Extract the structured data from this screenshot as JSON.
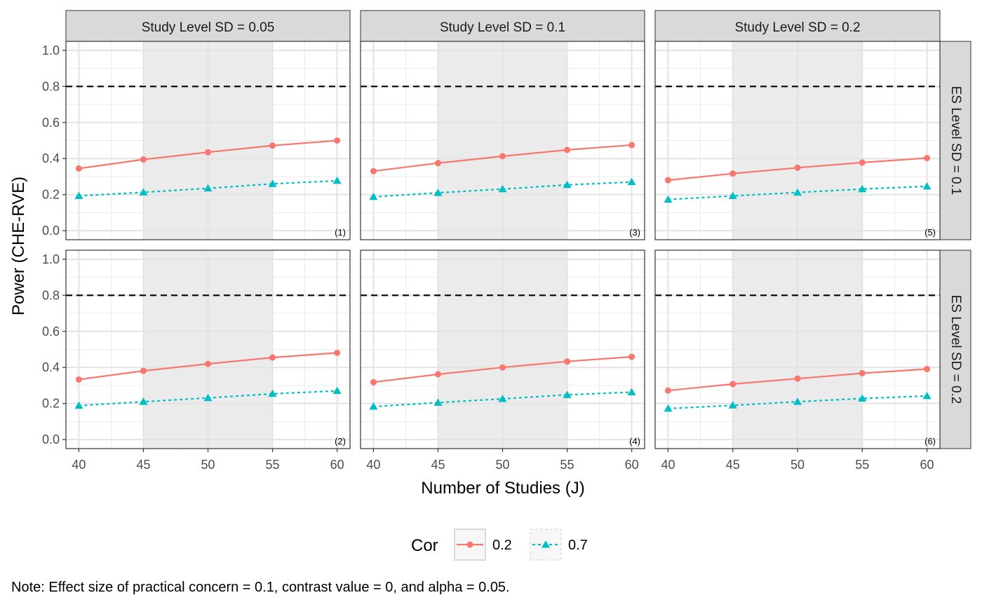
{
  "chart_data": {
    "type": "line",
    "ylabel": "Power (CHE-RVE)",
    "xlabel": "Number of Studies (J)",
    "x": [
      40,
      45,
      50,
      55,
      60
    ],
    "xticks": [
      "40",
      "45",
      "50",
      "55",
      "60"
    ],
    "xlim": [
      39,
      61
    ],
    "yticks": [
      "0.0",
      "0.2",
      "0.4",
      "0.6",
      "0.8",
      "1.0"
    ],
    "ylim": [
      -0.05,
      1.05
    ],
    "reference_line": 0.8,
    "shaded_x_range": [
      45,
      55
    ],
    "grid": true,
    "col_strips": [
      "Study Level SD = 0.05",
      "Study Level SD = 0.1",
      "Study Level SD = 0.2"
    ],
    "row_strips": [
      "ES Level SD = 0.1",
      "ES Level SD = 0.2"
    ],
    "legend": {
      "title": "Cor",
      "position": "bottom",
      "entries": [
        {
          "label": "0.2",
          "color": "#F8766D",
          "line": "solid",
          "marker": "circle"
        },
        {
          "label": "0.7",
          "color": "#00BFC4",
          "line": "dotted",
          "marker": "triangle"
        }
      ]
    },
    "panels": [
      {
        "row": 0,
        "col": 0,
        "tag": "(1)",
        "series": [
          {
            "name": "0.2",
            "values": [
              0.345,
              0.395,
              0.435,
              0.472,
              0.5
            ]
          },
          {
            "name": "0.7",
            "values": [
              0.193,
              0.213,
              0.235,
              0.26,
              0.277
            ]
          }
        ]
      },
      {
        "row": 1,
        "col": 0,
        "tag": "(2)",
        "series": [
          {
            "name": "0.2",
            "values": [
              0.333,
              0.381,
              0.42,
              0.455,
              0.481
            ]
          },
          {
            "name": "0.7",
            "values": [
              0.188,
              0.21,
              0.231,
              0.254,
              0.27
            ]
          }
        ]
      },
      {
        "row": 0,
        "col": 1,
        "tag": "(3)",
        "series": [
          {
            "name": "0.2",
            "values": [
              0.33,
              0.375,
              0.413,
              0.448,
              0.475
            ]
          },
          {
            "name": "0.7",
            "values": [
              0.188,
              0.21,
              0.231,
              0.254,
              0.27
            ]
          }
        ]
      },
      {
        "row": 1,
        "col": 1,
        "tag": "(4)",
        "series": [
          {
            "name": "0.2",
            "values": [
              0.318,
              0.362,
              0.4,
              0.433,
              0.459
            ]
          },
          {
            "name": "0.7",
            "values": [
              0.183,
              0.205,
              0.226,
              0.248,
              0.263
            ]
          }
        ]
      },
      {
        "row": 0,
        "col": 2,
        "tag": "(5)",
        "series": [
          {
            "name": "0.2",
            "values": [
              0.28,
              0.317,
              0.349,
              0.378,
              0.403
            ]
          },
          {
            "name": "0.7",
            "values": [
              0.173,
              0.193,
              0.212,
              0.231,
              0.246
            ]
          }
        ]
      },
      {
        "row": 1,
        "col": 2,
        "tag": "(6)",
        "series": [
          {
            "name": "0.2",
            "values": [
              0.272,
              0.308,
              0.338,
              0.368,
              0.391
            ]
          },
          {
            "name": "0.7",
            "values": [
              0.172,
              0.19,
              0.21,
              0.228,
              0.242
            ]
          }
        ]
      }
    ],
    "note": "Note: Effect size of practical concern = 0.1, contrast value = 0, and alpha = 0.05."
  }
}
